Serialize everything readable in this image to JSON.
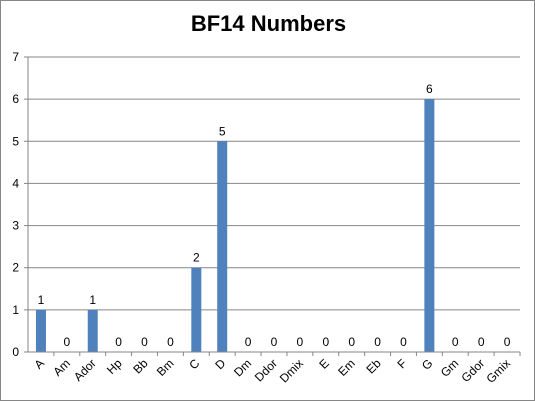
{
  "chart_data": {
    "type": "bar",
    "title": "BF14 Numbers",
    "categories": [
      "A",
      "Am",
      "Ador",
      "Hp",
      "Bb",
      "Bm",
      "C",
      "D",
      "Dm",
      "Ddor",
      "Dmix",
      "E",
      "Em",
      "Eb",
      "F",
      "G",
      "Gm",
      "Gdor",
      "Gmix"
    ],
    "values": [
      1,
      0,
      1,
      0,
      0,
      0,
      2,
      5,
      0,
      0,
      0,
      0,
      0,
      0,
      0,
      6,
      0,
      0,
      0
    ],
    "ylim": [
      0,
      7
    ],
    "yticks": [
      0,
      1,
      2,
      3,
      4,
      5,
      6,
      7
    ],
    "grid": true,
    "legend": "none",
    "bar_color": "#4f81bd",
    "data_labels": true
  }
}
